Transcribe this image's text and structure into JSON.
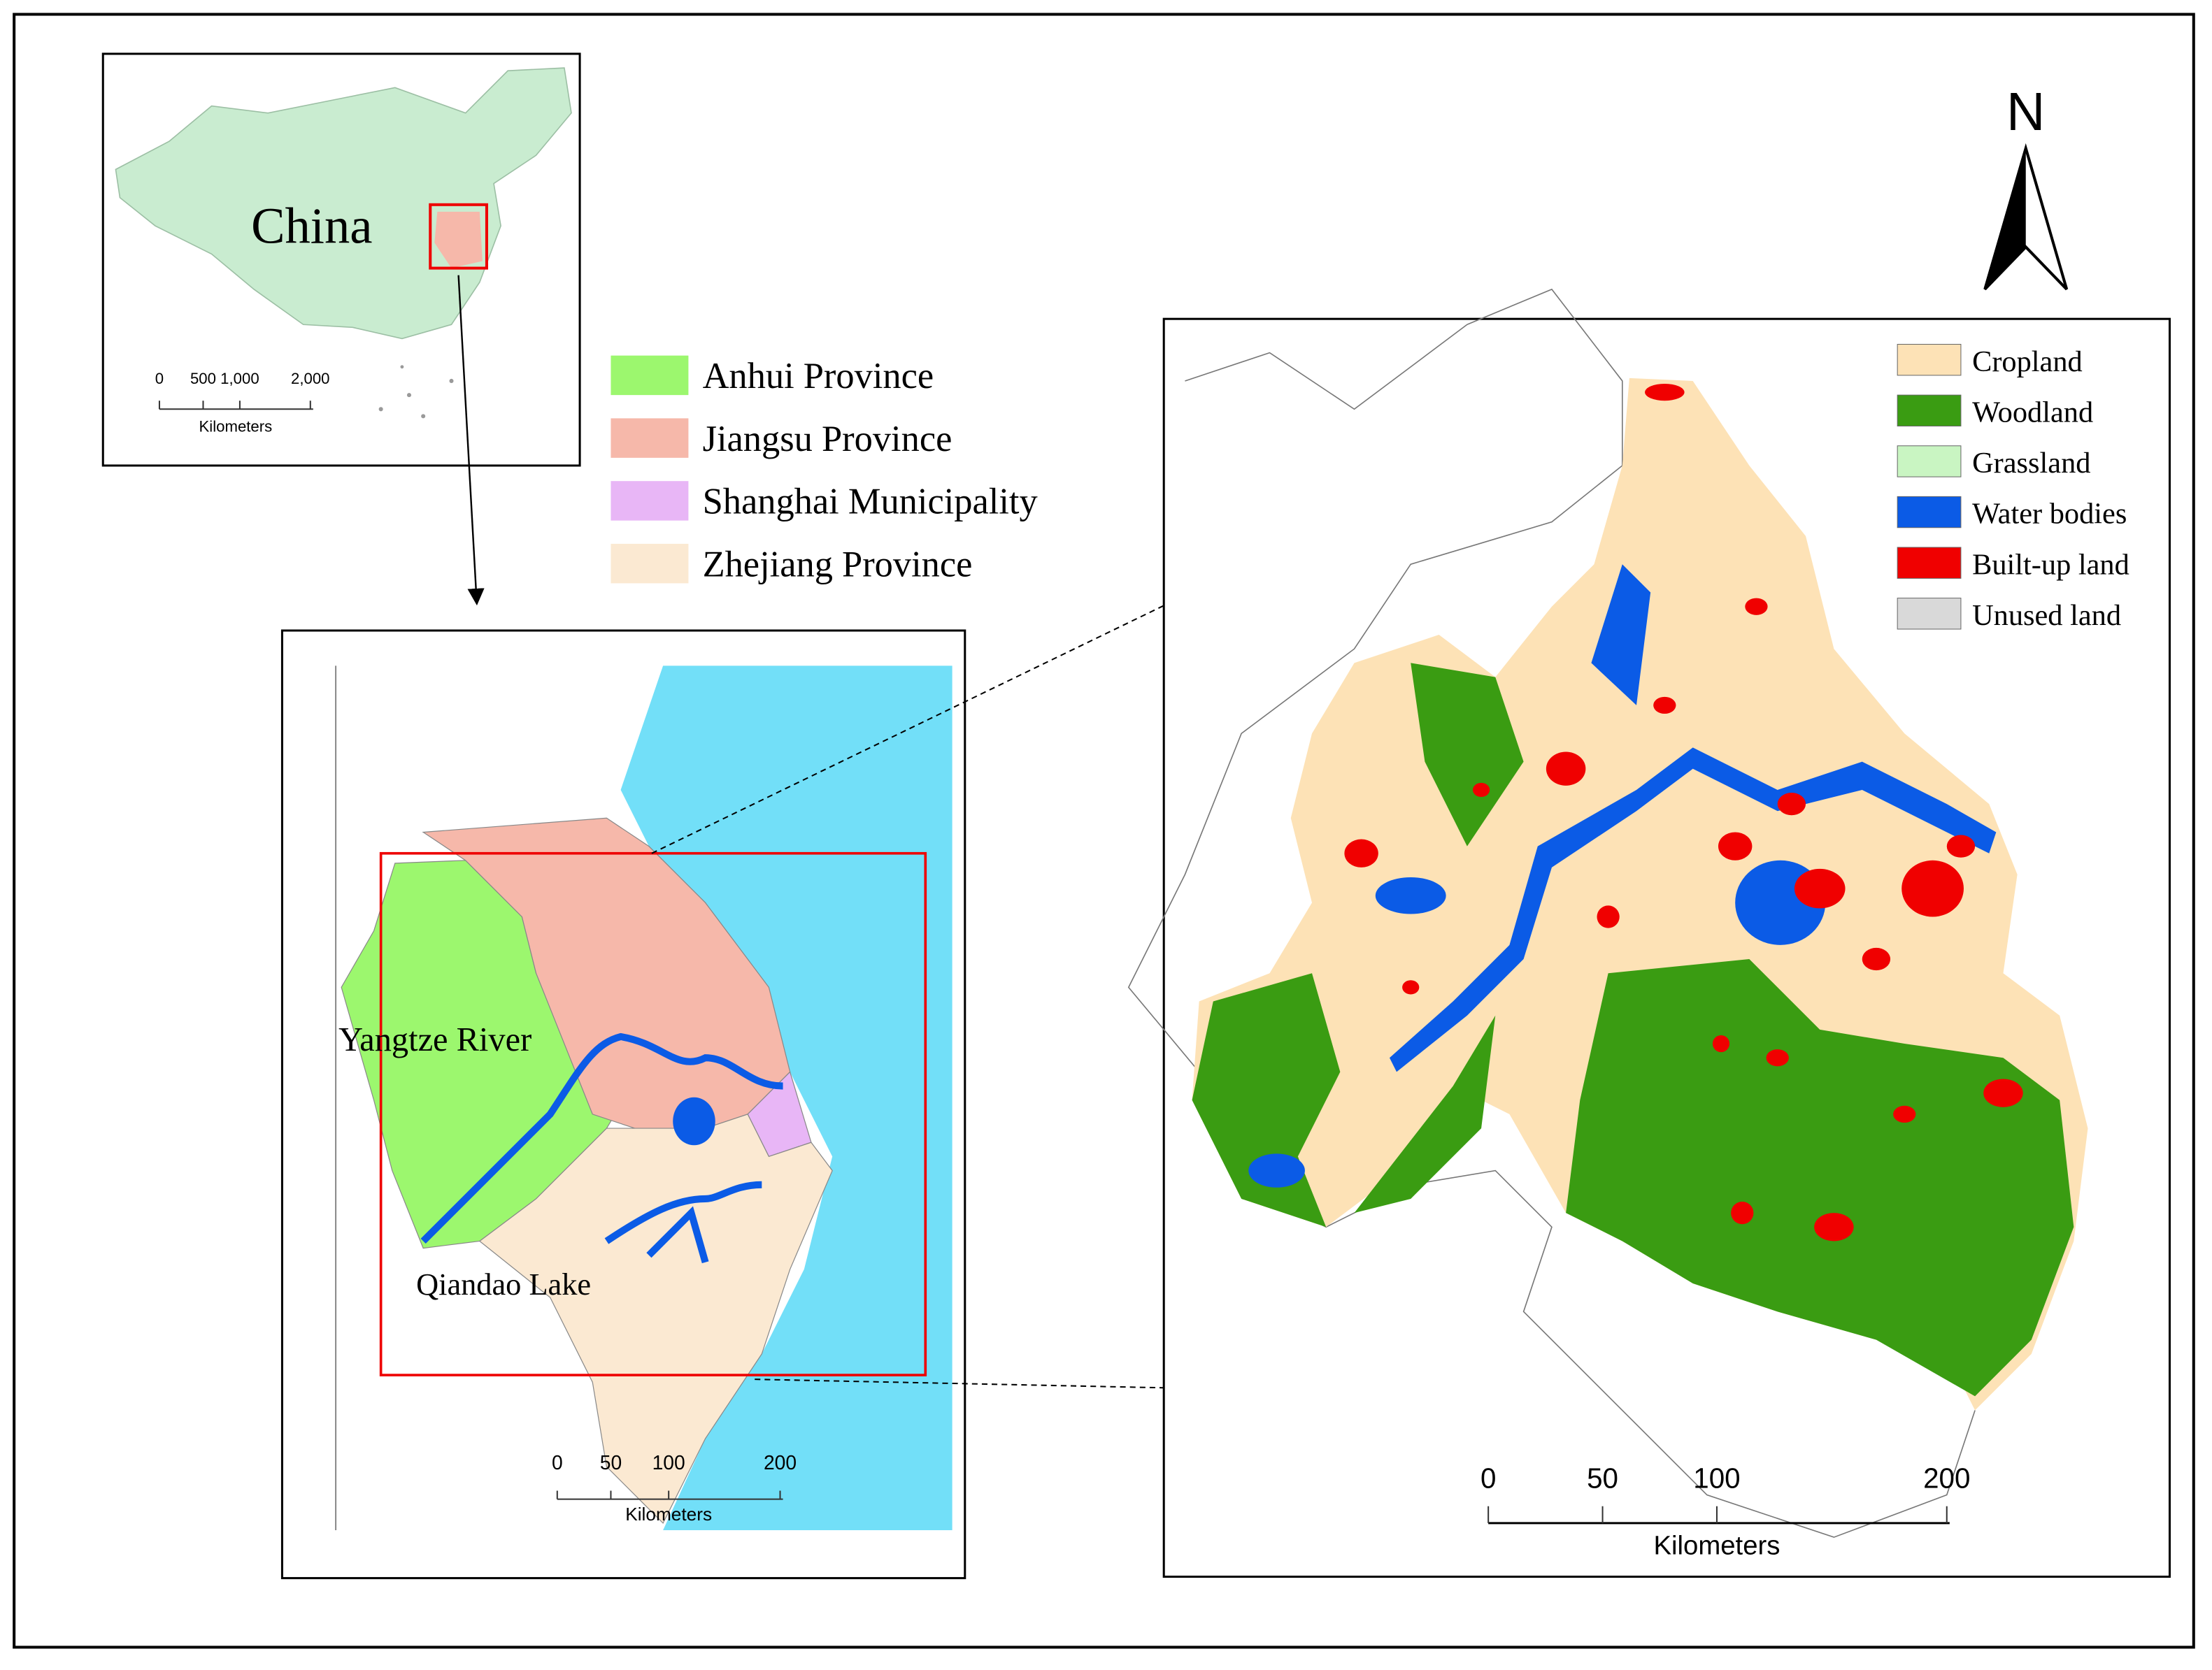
{
  "north_arrow": "N",
  "china_inset": {
    "label": "China",
    "scale_bar": {
      "ticks": [
        "0",
        "500",
        "1,000",
        "2,000"
      ],
      "unit": "Kilometers"
    }
  },
  "region_inset": {
    "legend": [
      {
        "label": "Anhui Province",
        "color": "#9cf76e"
      },
      {
        "label": "Jiangsu Province",
        "color": "#f6b8aa"
      },
      {
        "label": "Shanghai Municipality",
        "color": "#e8b6f6"
      },
      {
        "label": "Zhejiang Province",
        "color": "#fbe9d2"
      }
    ],
    "annotations": [
      "Yangtze River",
      "Qiandao Lake"
    ],
    "scale_bar": {
      "ticks": [
        "0",
        "50",
        "100",
        "200"
      ],
      "unit": "Kilometers"
    }
  },
  "land_use_map": {
    "legend": [
      {
        "label": "Cropland",
        "color": "#fde2b6"
      },
      {
        "label": "Woodland",
        "color": "#3a9c12"
      },
      {
        "label": "Grassland",
        "color": "#c9f5c2"
      },
      {
        "label": "Water bodies",
        "color": "#0b5be6"
      },
      {
        "label": "Built-up land",
        "color": "#f00000"
      },
      {
        "label": "Unused land",
        "color": "#d9d9d9"
      }
    ],
    "scale_bar": {
      "ticks": [
        "0",
        "50",
        "100",
        "200"
      ],
      "unit": "Kilometers"
    }
  }
}
